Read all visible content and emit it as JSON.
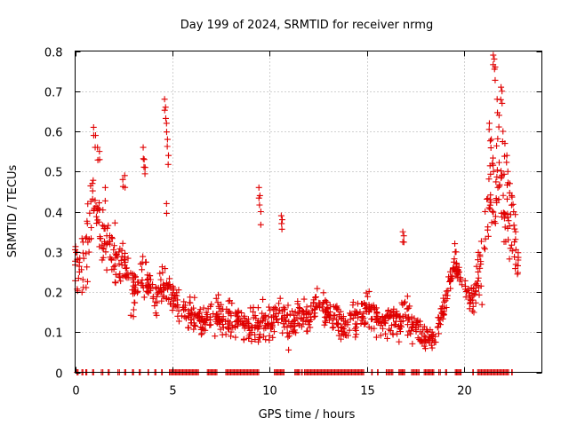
{
  "chart_data": {
    "type": "scatter",
    "title": "Day 199 of 2024, SRMTID for receiver nrmg",
    "xlabel": "GPS time / hours",
    "ylabel": "SRMTID / TECUs",
    "xlim": [
      0,
      24
    ],
    "ylim": [
      0,
      0.8
    ],
    "x_ticks": [
      "0",
      "5",
      "10",
      "15",
      "20"
    ],
    "y_ticks": [
      "0",
      "0.1",
      "0.2",
      "0.3",
      "0.4",
      "0.5",
      "0.6",
      "0.7",
      "0.8"
    ],
    "grid": true,
    "marker": "+",
    "color": "#e00000",
    "series": [
      {
        "name": "SRMTID",
        "anchors": [
          [
            0.0,
            0.26,
            0.07
          ],
          [
            0.5,
            0.28,
            0.08
          ],
          [
            0.8,
            0.38,
            0.1
          ],
          [
            1.0,
            0.45,
            0.1
          ],
          [
            1.3,
            0.36,
            0.1
          ],
          [
            1.6,
            0.32,
            0.08
          ],
          [
            2.0,
            0.28,
            0.07
          ],
          [
            2.5,
            0.27,
            0.06
          ],
          [
            3.0,
            0.2,
            0.05
          ],
          [
            3.5,
            0.24,
            0.06
          ],
          [
            4.0,
            0.2,
            0.05
          ],
          [
            4.5,
            0.22,
            0.06
          ],
          [
            5.0,
            0.2,
            0.05
          ],
          [
            5.5,
            0.15,
            0.04
          ],
          [
            6.0,
            0.15,
            0.04
          ],
          [
            6.5,
            0.13,
            0.04
          ],
          [
            7.0,
            0.14,
            0.04
          ],
          [
            7.5,
            0.14,
            0.04
          ],
          [
            8.0,
            0.13,
            0.04
          ],
          [
            8.5,
            0.12,
            0.04
          ],
          [
            9.0,
            0.11,
            0.04
          ],
          [
            9.5,
            0.12,
            0.04
          ],
          [
            10.0,
            0.12,
            0.04
          ],
          [
            10.5,
            0.15,
            0.05
          ],
          [
            11.0,
            0.13,
            0.05
          ],
          [
            11.5,
            0.14,
            0.05
          ],
          [
            12.0,
            0.14,
            0.04
          ],
          [
            12.5,
            0.17,
            0.04
          ],
          [
            13.0,
            0.15,
            0.04
          ],
          [
            13.5,
            0.12,
            0.04
          ],
          [
            14.0,
            0.11,
            0.04
          ],
          [
            14.5,
            0.13,
            0.04
          ],
          [
            15.0,
            0.16,
            0.04
          ],
          [
            15.5,
            0.13,
            0.04
          ],
          [
            16.0,
            0.13,
            0.04
          ],
          [
            16.5,
            0.13,
            0.04
          ],
          [
            17.0,
            0.15,
            0.05
          ],
          [
            17.5,
            0.11,
            0.03
          ],
          [
            18.0,
            0.09,
            0.03
          ],
          [
            18.5,
            0.09,
            0.03
          ],
          [
            19.0,
            0.17,
            0.04
          ],
          [
            19.5,
            0.28,
            0.03
          ],
          [
            20.0,
            0.2,
            0.03
          ],
          [
            20.5,
            0.18,
            0.04
          ],
          [
            21.0,
            0.27,
            0.1
          ],
          [
            21.5,
            0.5,
            0.15
          ],
          [
            22.0,
            0.42,
            0.1
          ],
          [
            22.5,
            0.33,
            0.08
          ],
          [
            22.8,
            0.28,
            0.07
          ]
        ],
        "spikes": [
          [
            0.95,
            0.61
          ],
          [
            1.05,
            0.59
          ],
          [
            1.15,
            0.56
          ],
          [
            1.25,
            0.55
          ],
          [
            1.55,
            0.46
          ],
          [
            2.45,
            0.48
          ],
          [
            2.55,
            0.49
          ],
          [
            3.5,
            0.56
          ],
          [
            3.55,
            0.53
          ],
          [
            3.6,
            0.51
          ],
          [
            4.6,
            0.68
          ],
          [
            4.65,
            0.66
          ],
          [
            4.7,
            0.62
          ],
          [
            4.75,
            0.58
          ],
          [
            4.8,
            0.54
          ],
          [
            4.7,
            0.42
          ],
          [
            9.45,
            0.46
          ],
          [
            9.5,
            0.44
          ],
          [
            9.55,
            0.4
          ],
          [
            10.6,
            0.39
          ],
          [
            10.65,
            0.38
          ],
          [
            16.85,
            0.35
          ],
          [
            16.9,
            0.34
          ],
          [
            21.3,
            0.62
          ],
          [
            21.4,
            0.58
          ],
          [
            21.5,
            0.79
          ],
          [
            21.55,
            0.78
          ],
          [
            21.6,
            0.76
          ],
          [
            21.7,
            0.68
          ],
          [
            21.8,
            0.64
          ],
          [
            21.9,
            0.71
          ],
          [
            21.95,
            0.7
          ],
          [
            22.0,
            0.6
          ],
          [
            22.1,
            0.57
          ],
          [
            22.2,
            0.54
          ],
          [
            22.25,
            0.5
          ],
          [
            22.35,
            0.47
          ],
          [
            22.45,
            0.44
          ],
          [
            22.55,
            0.4
          ],
          [
            22.65,
            0.35
          ]
        ],
        "zero_clusters": [
          [
            0.1,
            0.1
          ],
          [
            0.35,
            0.1
          ],
          [
            0.55,
            0.1
          ],
          [
            0.9,
            0.1
          ],
          [
            1.35,
            0.15
          ],
          [
            1.7,
            0.1
          ],
          [
            2.2,
            0.15
          ],
          [
            2.55,
            0.1
          ],
          [
            2.95,
            0.1
          ],
          [
            3.3,
            0.1
          ],
          [
            3.75,
            0.05
          ],
          [
            4.1,
            0.1
          ],
          [
            4.45,
            0.05
          ],
          [
            4.85,
            1.55
          ],
          [
            6.8,
            0.55
          ],
          [
            7.75,
            1.75
          ],
          [
            10.25,
            0.55
          ],
          [
            11.3,
            0.3
          ],
          [
            11.65,
            0.05
          ],
          [
            11.8,
            3.1
          ],
          [
            15.25,
            0.05
          ],
          [
            15.55,
            0.05
          ],
          [
            16.0,
            0.4
          ],
          [
            16.65,
            0.35
          ],
          [
            17.3,
            0.45
          ],
          [
            17.95,
            0.55
          ],
          [
            18.7,
            0.15
          ],
          [
            19.05,
            0.1
          ],
          [
            19.55,
            0.35
          ],
          [
            20.45,
            0.05
          ],
          [
            20.7,
            1.65
          ],
          [
            22.45,
            0.05
          ]
        ]
      }
    ]
  }
}
